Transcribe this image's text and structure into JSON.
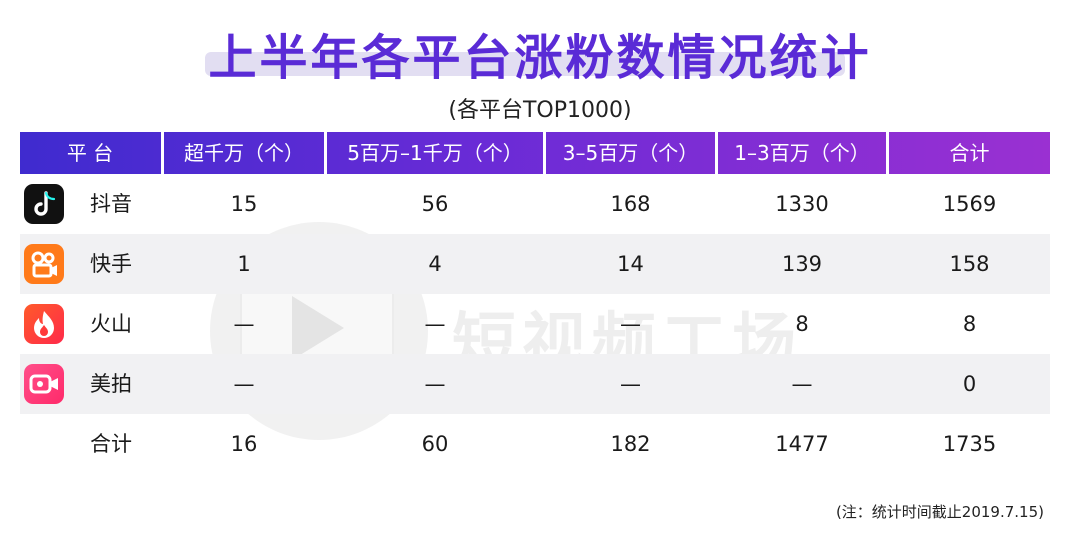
{
  "title": "上半年各平台涨粉数情况统计",
  "subtitle": "(各平台TOP1000)",
  "watermark": "短视频工场",
  "table": {
    "headers": [
      "平 台",
      "超千万（个）",
      "5百万–1千万（个）",
      "3–5百万（个）",
      "1–3百万（个）",
      "合计"
    ],
    "rows": [
      {
        "platform": "抖音",
        "icon": "douyin-icon",
        "values": [
          "15",
          "56",
          "168",
          "1330",
          "1569"
        ]
      },
      {
        "platform": "快手",
        "icon": "kuaishou-icon",
        "values": [
          "1",
          "4",
          "14",
          "139",
          "158"
        ]
      },
      {
        "platform": "火山",
        "icon": "huoshan-icon",
        "values": [
          "—",
          "—",
          "—",
          "8",
          "8"
        ]
      },
      {
        "platform": "美拍",
        "icon": "meipai-icon",
        "values": [
          "—",
          "—",
          "—",
          "—",
          "0"
        ]
      },
      {
        "platform": "合计",
        "icon": "",
        "values": [
          "16",
          "60",
          "182",
          "1477",
          "1735"
        ]
      }
    ]
  },
  "note": "(注：统计时间截止2019.7.15)",
  "colors": {
    "title": "#5a2bd6",
    "header_start": "#3f2bcf",
    "header_end": "#9a30d2",
    "row_shade": "#f1f1f3"
  }
}
